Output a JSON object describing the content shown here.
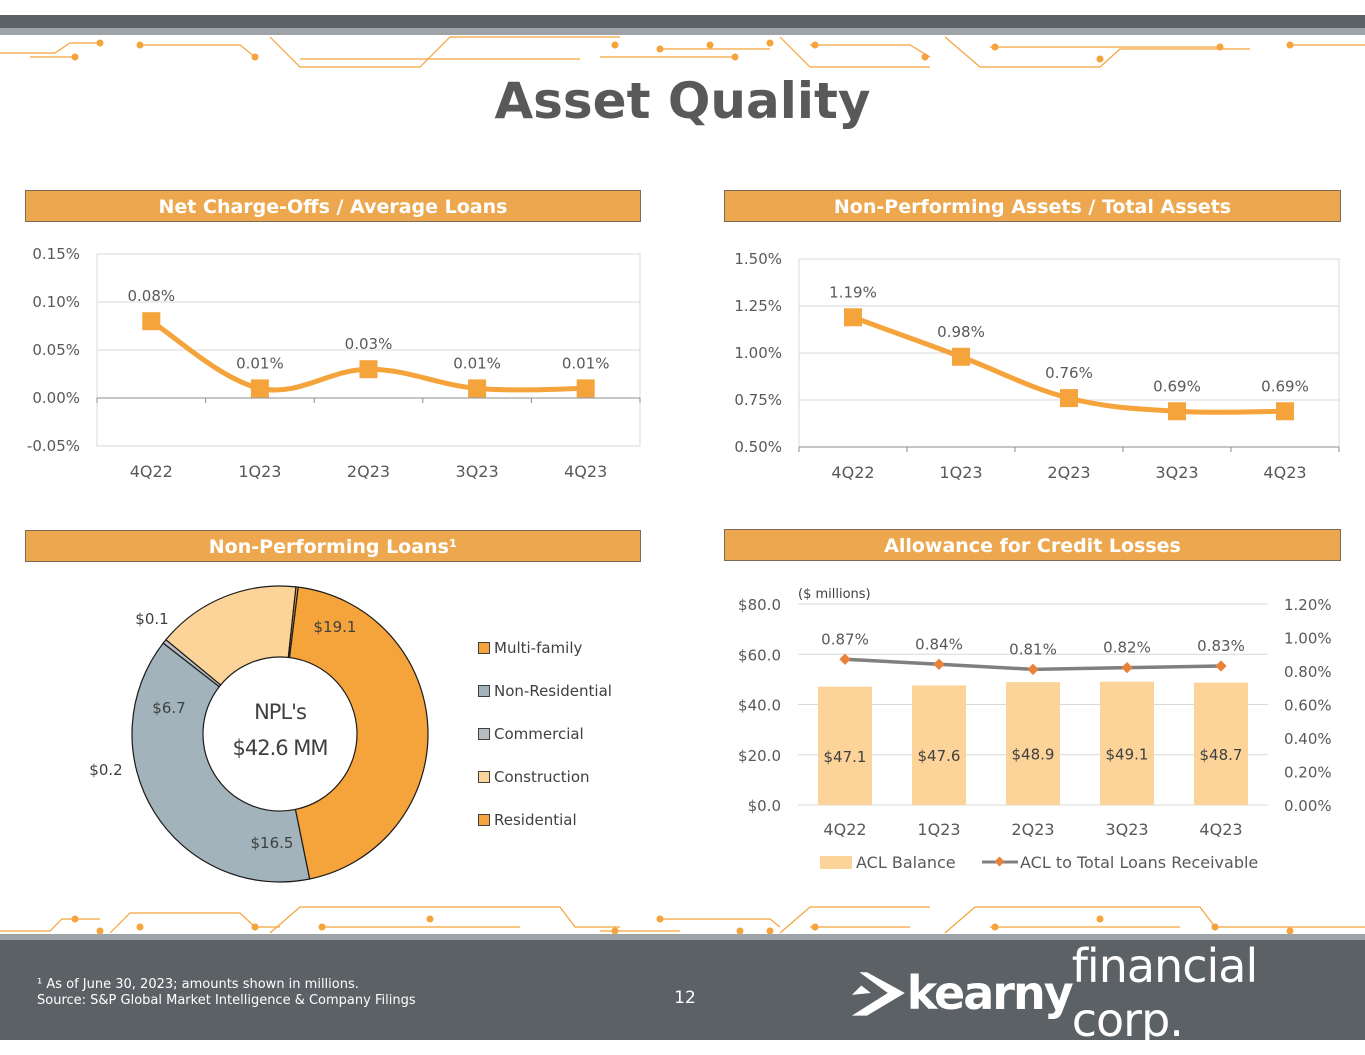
{
  "page": {
    "title": "Asset Quality",
    "page_number": "12",
    "footnote_line1": "¹ As of June 30, 2023; amounts shown in millions.",
    "footnote_line2": "Source: S&P Global Market Intelligence & Company Filings",
    "logo_bold": "kearny",
    "logo_light": "financial corp.",
    "accent_color": "#f5a33b",
    "header_color": "#eda84f",
    "footer_color": "#5c6166"
  },
  "chart_data": [
    {
      "id": "nco",
      "type": "line",
      "title": "Net Charge-Offs / Average Loans",
      "categories": [
        "4Q22",
        "1Q23",
        "2Q23",
        "3Q23",
        "4Q23"
      ],
      "values": [
        0.08,
        0.01,
        0.03,
        0.01,
        0.01
      ],
      "data_labels": [
        "0.08%",
        "0.01%",
        "0.03%",
        "0.01%",
        "0.01%"
      ],
      "ylim": [
        -0.05,
        0.15
      ],
      "yticks": [
        0.15,
        0.1,
        0.05,
        0.0,
        -0.05
      ],
      "ytick_labels": [
        "0.15%",
        "0.10%",
        "0.05%",
        "0.00%",
        "-0.05%"
      ],
      "grid": true,
      "color": "#f5a33b"
    },
    {
      "id": "npa",
      "type": "line",
      "title": "Non-Performing Assets / Total Assets",
      "categories": [
        "4Q22",
        "1Q23",
        "2Q23",
        "3Q23",
        "4Q23"
      ],
      "values": [
        1.19,
        0.98,
        0.76,
        0.69,
        0.69
      ],
      "data_labels": [
        "1.19%",
        "0.98%",
        "0.76%",
        "0.69%",
        "0.69%"
      ],
      "ylim": [
        0.5,
        1.5
      ],
      "yticks": [
        1.5,
        1.25,
        1.0,
        0.75,
        0.5
      ],
      "ytick_labels": [
        "1.50%",
        "1.25%",
        "1.00%",
        "0.75%",
        "0.50%"
      ],
      "grid": true,
      "color": "#f5a33b"
    },
    {
      "id": "npl",
      "type": "pie",
      "title": "Non-Performing Loans¹",
      "center_line1": "NPL's",
      "center_line2": "$42.6 MM",
      "slices": [
        {
          "name": "Multi-family",
          "value": 19.1,
          "label": "$19.1",
          "color": "#f5a33b"
        },
        {
          "name": "Non-Residential",
          "value": 16.5,
          "label": "$16.5",
          "color": "#a2b3bc"
        },
        {
          "name": "Commercial",
          "value": 0.2,
          "label": "$0.2",
          "color": "#b7bcc0"
        },
        {
          "name": "Construction",
          "value": 6.7,
          "label": "$6.7",
          "color": "#fcd49a"
        },
        {
          "name": "Residential",
          "value": 0.1,
          "label": "$0.1",
          "color": "#f5a33b"
        }
      ],
      "legend": "right"
    },
    {
      "id": "acl",
      "type": "bar",
      "title": "Allowance for Credit Losses",
      "units_note": "($ millions)",
      "categories": [
        "4Q22",
        "1Q23",
        "2Q23",
        "3Q23",
        "4Q23"
      ],
      "series": [
        {
          "name": "ACL Balance",
          "values": [
            47.1,
            47.6,
            48.9,
            49.1,
            48.7
          ],
          "labels": [
            "$47.1",
            "$47.6",
            "$48.9",
            "$49.1",
            "$48.7"
          ],
          "color": "#fcd49a"
        },
        {
          "name": "ACL to Total Loans Receivable",
          "type": "line",
          "axis": "right",
          "values": [
            0.87,
            0.84,
            0.81,
            0.82,
            0.83
          ],
          "labels": [
            "0.87%",
            "0.84%",
            "0.81%",
            "0.82%",
            "0.83%"
          ],
          "color": "#7f7f7f",
          "marker_color": "#e8823a"
        }
      ],
      "ylim_left": [
        0,
        80
      ],
      "left_ticks": [
        80,
        60,
        40,
        20,
        0
      ],
      "left_tick_labels": [
        "$80.0",
        "$60.0",
        "$40.0",
        "$20.0",
        "$0.0"
      ],
      "ylim_right": [
        0,
        1.2
      ],
      "right_ticks": [
        1.2,
        1.0,
        0.8,
        0.6,
        0.4,
        0.2,
        0.0
      ],
      "right_tick_labels": [
        "1.20%",
        "1.00%",
        "0.80%",
        "0.60%",
        "0.40%",
        "0.20%",
        "0.00%"
      ],
      "legend": "bottom"
    }
  ]
}
